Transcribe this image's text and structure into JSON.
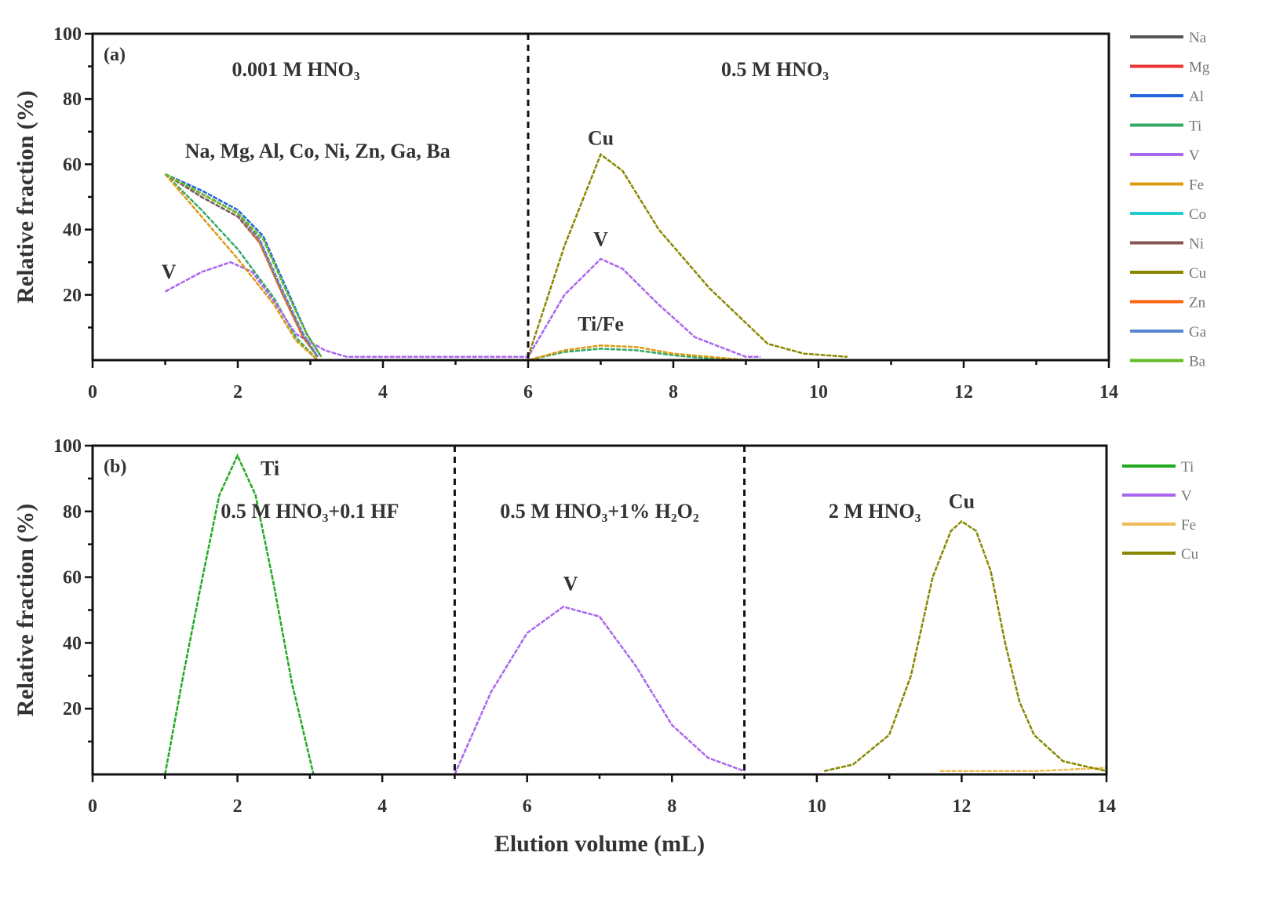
{
  "chart_data": [
    {
      "type": "line",
      "panel_label": "(a)",
      "xlabel": "",
      "ylabel": "Relative fraction (%)",
      "xlim": [
        0,
        14
      ],
      "ylim": [
        0,
        100
      ],
      "xticks": [
        "0",
        "2",
        "4",
        "6",
        "8",
        "10",
        "12",
        "14"
      ],
      "yticks": [
        "20",
        "40",
        "60",
        "80",
        "100"
      ],
      "dividers": [
        6
      ],
      "legend_position": "right-outside",
      "annotations": [
        {
          "text": "0.001 M HNO₃",
          "x": 2.8,
          "y": 87
        },
        {
          "text": "0.5 M HNO₃",
          "x": 9.4,
          "y": 87
        },
        {
          "text": "Na, Mg, Al, Co, Ni, Zn, Ga, Ba",
          "x": 3.1,
          "y": 62
        },
        {
          "text": "V",
          "x": 1.05,
          "y": 25
        },
        {
          "text": "Cu",
          "x": 7.0,
          "y": 66
        },
        {
          "text": "V",
          "x": 7.0,
          "y": 35
        },
        {
          "text": "Ti/Fe",
          "x": 7.0,
          "y": 9
        }
      ],
      "series": [
        {
          "name": "Na",
          "color": "#555555",
          "x": [
            1,
            1.5,
            2,
            2.3,
            2.6,
            2.9,
            3.1
          ],
          "y": [
            57,
            51,
            45,
            37,
            22,
            8,
            1
          ]
        },
        {
          "name": "Mg",
          "color": "#ee3333",
          "x": [
            1,
            1.5,
            2,
            2.3,
            2.6,
            2.9,
            3.1
          ],
          "y": [
            57,
            51,
            45,
            37,
            22,
            8,
            1
          ]
        },
        {
          "name": "Al",
          "color": "#2266dd",
          "x": [
            1,
            1.5,
            2,
            2.35,
            2.65,
            2.95,
            3.15
          ],
          "y": [
            57,
            52,
            46,
            38,
            23,
            8,
            1
          ]
        },
        {
          "name": "Ti",
          "color": "#33aa66",
          "x": [
            1,
            1.5,
            2,
            2.5,
            2.8,
            3.1,
            6,
            6.5,
            7,
            7.5,
            8,
            8.5,
            9
          ],
          "y": [
            57,
            46,
            34,
            19,
            7,
            0,
            0,
            2.5,
            3.5,
            3,
            1.5,
            0.5,
            0
          ]
        },
        {
          "name": "V",
          "color": "#aa66ee",
          "x": [
            1,
            1.5,
            1.9,
            2.2,
            2.5,
            2.8,
            3.2,
            3.5,
            4,
            6,
            6.5,
            7,
            7.3,
            7.8,
            8.3,
            9,
            9.2
          ],
          "y": [
            21,
            27,
            30,
            27,
            18,
            8,
            3,
            1,
            1,
            1,
            20,
            31,
            28,
            17,
            7,
            1,
            1
          ]
        },
        {
          "name": "Fe",
          "color": "#dd9911",
          "x": [
            1,
            1.5,
            2,
            2.5,
            2.8,
            3.1,
            6,
            6.5,
            7,
            7.5,
            8,
            8.5,
            9
          ],
          "y": [
            57,
            44,
            31,
            17,
            6,
            0,
            0,
            3,
            4.5,
            4,
            2,
            1,
            0
          ]
        },
        {
          "name": "Co",
          "color": "#22cccc",
          "x": [
            1,
            1.5,
            2,
            2.3,
            2.6,
            2.9,
            3.1
          ],
          "y": [
            57,
            50,
            44,
            36,
            21,
            7,
            1
          ]
        },
        {
          "name": "Ni",
          "color": "#885555",
          "x": [
            1,
            1.5,
            2,
            2.3,
            2.6,
            2.9,
            3.1
          ],
          "y": [
            57,
            50,
            44,
            36,
            21,
            7,
            1
          ]
        },
        {
          "name": "Cu",
          "color": "#888800",
          "x": [
            6,
            6.5,
            7,
            7.3,
            7.8,
            8.5,
            9.3,
            9.8,
            10.4
          ],
          "y": [
            1,
            35,
            63,
            58,
            40,
            22,
            5,
            2,
            1
          ]
        },
        {
          "name": "Zn",
          "color": "#ff6611",
          "x": [
            1,
            1.5,
            2,
            2.3,
            2.6,
            2.9,
            3.1
          ],
          "y": [
            57,
            51,
            45,
            36,
            21,
            7,
            1
          ]
        },
        {
          "name": "Ga",
          "color": "#5588cc",
          "x": [
            1,
            1.5,
            2,
            2.3,
            2.6,
            2.9,
            3.1
          ],
          "y": [
            57,
            51,
            45,
            37,
            22,
            8,
            1
          ]
        },
        {
          "name": "Ba",
          "color": "#66bb22",
          "x": [
            1,
            1.5,
            2,
            2.35,
            2.65,
            2.95,
            3.15
          ],
          "y": [
            57,
            51,
            45,
            37,
            22,
            8,
            1
          ]
        }
      ]
    },
    {
      "type": "line",
      "panel_label": "(b)",
      "xlabel": "Elution volume (mL)",
      "ylabel": "Relative fraction (%)",
      "xlim": [
        0,
        14
      ],
      "ylim": [
        0,
        100
      ],
      "xticks": [
        "0",
        "2",
        "4",
        "6",
        "8",
        "10",
        "12",
        "14"
      ],
      "yticks": [
        "20",
        "40",
        "60",
        "80",
        "100"
      ],
      "dividers": [
        5,
        9
      ],
      "legend_position": "right-outside",
      "annotations": [
        {
          "text": "0.5 M HNO₃+0.1 HF",
          "x": 3.0,
          "y": 78
        },
        {
          "text": "Ti",
          "x": 2.45,
          "y": 91
        },
        {
          "text": "0.5 M HNO₃+1% H₂O₂",
          "x": 7.0,
          "y": 78
        },
        {
          "text": "V",
          "x": 6.6,
          "y": 56
        },
        {
          "text": "2 M HNO₃",
          "x": 10.8,
          "y": 78
        },
        {
          "text": "Cu",
          "x": 12.0,
          "y": 81
        }
      ],
      "series": [
        {
          "name": "Ti",
          "color": "#22aa22",
          "x": [
            1,
            1.25,
            1.5,
            1.75,
            2,
            2.25,
            2.5,
            2.75,
            3.05
          ],
          "y": [
            0,
            30,
            58,
            85,
            97,
            85,
            58,
            28,
            0
          ]
        },
        {
          "name": "V",
          "color": "#aa66ee",
          "x": [
            5,
            5.5,
            6,
            6.5,
            7,
            7.5,
            8,
            8.5,
            9
          ],
          "y": [
            0,
            25,
            43,
            51,
            48,
            33,
            15,
            5,
            1
          ]
        },
        {
          "name": "Fe",
          "color": "#eebb55",
          "x": [
            11.7,
            13,
            14
          ],
          "y": [
            1,
            1,
            2
          ]
        },
        {
          "name": "Cu",
          "color": "#888800",
          "x": [
            10.1,
            10.5,
            11,
            11.3,
            11.6,
            11.85,
            12,
            12.2,
            12.4,
            12.6,
            12.8,
            13,
            13.4,
            14
          ],
          "y": [
            1,
            3,
            12,
            30,
            60,
            74,
            77,
            74,
            62,
            40,
            22,
            12,
            4,
            1
          ]
        }
      ]
    }
  ]
}
